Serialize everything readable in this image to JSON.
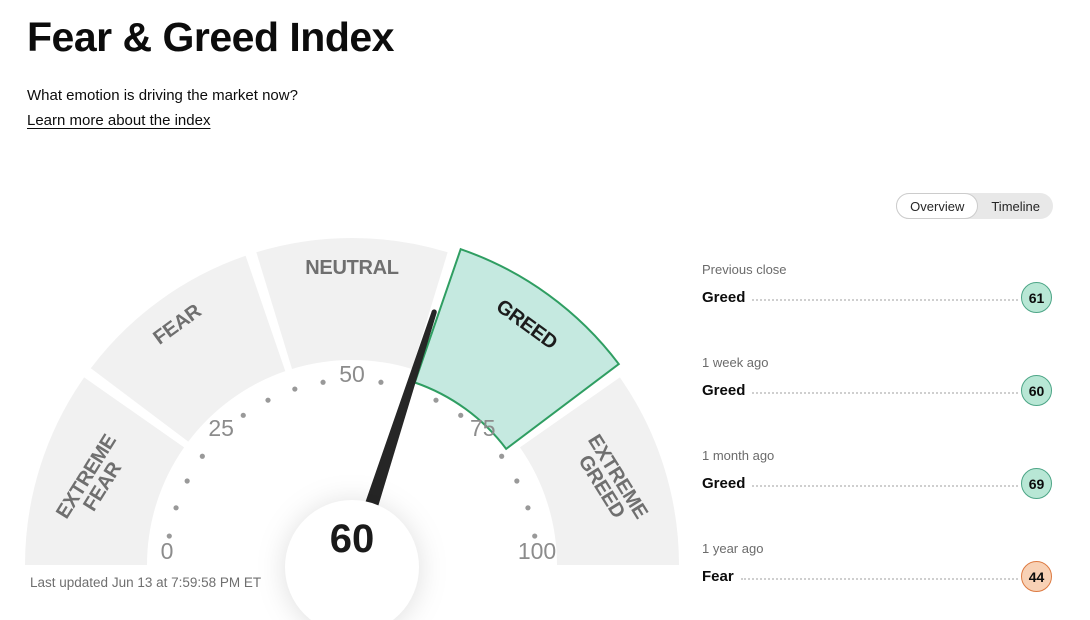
{
  "header": {
    "title": "Fear & Greed Index",
    "subtitle": "What emotion is driving the market now?",
    "link": "Learn more about the index"
  },
  "tabs": {
    "overview": "Overview",
    "timeline": "Timeline"
  },
  "chart_data": {
    "type": "gauge",
    "title": "Fear & Greed Index",
    "value": 60,
    "value_label": "60",
    "current_sentiment": "Greed",
    "min": 0,
    "max": 100,
    "tick_labels": [
      0,
      25,
      50,
      75,
      100
    ],
    "dot_step": 5,
    "segments": [
      {
        "label": "EXTREME FEAR",
        "lines": [
          "EXTREME",
          "FEAR"
        ],
        "from": 0,
        "to": 20,
        "active": false
      },
      {
        "label": "FEAR",
        "lines": [
          "FEAR"
        ],
        "from": 20,
        "to": 40,
        "active": false
      },
      {
        "label": "NEUTRAL",
        "lines": [
          "NEUTRAL"
        ],
        "from": 40,
        "to": 60,
        "active": false
      },
      {
        "label": "GREED",
        "lines": [
          "GREED"
        ],
        "from": 60,
        "to": 80,
        "active": true
      },
      {
        "label": "EXTREME GREED",
        "lines": [
          "EXTREME",
          "GREED"
        ],
        "from": 80,
        "to": 100,
        "active": false
      }
    ],
    "colors": {
      "inactive_fill": "#f1f1f1",
      "active_fill": "#c5e9e0",
      "active_stroke": "#2f9e62",
      "needle": "#262626",
      "center_fill": "#ffffff",
      "value_color": "#1a1a1a",
      "tick_dot": "#999999",
      "tick_label": "#8c8c8c",
      "label_inactive": "#6f6f6f",
      "label_active": "#1c1c1c"
    }
  },
  "history": [
    {
      "period": "Previous close",
      "label": "Greed",
      "value": "61",
      "sentiment": "greed"
    },
    {
      "period": "1 week ago",
      "label": "Greed",
      "value": "60",
      "sentiment": "greed"
    },
    {
      "period": "1 month ago",
      "label": "Greed",
      "value": "69",
      "sentiment": "greed"
    },
    {
      "period": "1 year ago",
      "label": "Fear",
      "value": "44",
      "sentiment": "fear"
    }
  ],
  "badge_colors": {
    "greed": {
      "fill": "#b8e7d5",
      "border": "#4ca586"
    },
    "fear": {
      "fill": "#f8d1b5",
      "border": "#dd7a41"
    }
  },
  "footer": {
    "last_updated": "Last updated Jun 13 at 7:59:58 PM ET"
  }
}
